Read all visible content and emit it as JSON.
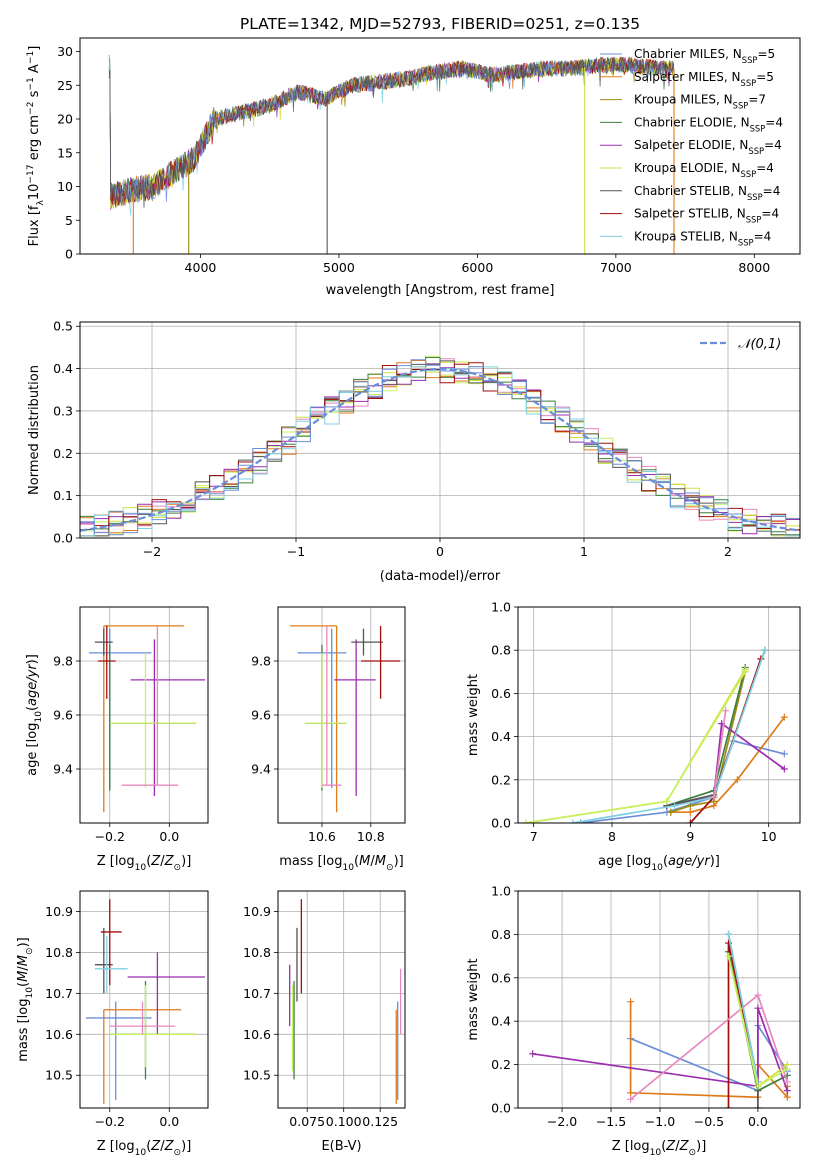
{
  "figure": {
    "title": "PLATE=1342, MJD=52793, FIBERID=0251, z=0.135"
  },
  "colors": {
    "c1": "#6a8fd8",
    "c2": "#e07b1a",
    "c3": "#a08a10",
    "c4": "#3f7f3f",
    "c5": "#9b2db0",
    "c6": "#d4e040",
    "c7": "#555555",
    "c8": "#a00e0e",
    "c9": "#7fd0e0",
    "c10": "#e888c0",
    "c11": "#c8f060",
    "c12": "#60c0b0"
  },
  "chart_data": [
    {
      "id": "spectrum",
      "type": "line",
      "xlabel": "wavelength [Angstrom, rest frame]",
      "ylabel": "Flux [f_λ10^-17 erg cm^-2 s^-1 A^-1]",
      "xlim": [
        3130,
        8330
      ],
      "ylim": [
        0,
        32
      ],
      "xticks": [
        "4000",
        "5000",
        "6000",
        "7000",
        "8000"
      ],
      "xtick_values": [
        4000,
        5000,
        6000,
        7000,
        8000
      ],
      "yticks": [
        "0",
        "5",
        "10",
        "15",
        "20",
        "25",
        "30"
      ],
      "ytick_values": [
        0,
        5,
        10,
        15,
        20,
        25,
        30
      ],
      "grid": false,
      "legend_position": "right",
      "legend": [
        {
          "name": "Chabrier MILES, N",
          "sub": "SSP",
          "suffix": "=5",
          "color": "c1"
        },
        {
          "name": "Salpeter MILES, N",
          "sub": "SSP",
          "suffix": "=5",
          "color": "c2"
        },
        {
          "name": "Kroupa MILES, N",
          "sub": "SSP",
          "suffix": "=7",
          "color": "c3"
        },
        {
          "name": "Chabrier ELODIE, N",
          "sub": "SSP",
          "suffix": "=4",
          "color": "c4"
        },
        {
          "name": "Salpeter ELODIE, N",
          "sub": "SSP",
          "suffix": "=4",
          "color": "c5"
        },
        {
          "name": "Kroupa ELODIE, N",
          "sub": "SSP",
          "suffix": "=4",
          "color": "c6"
        },
        {
          "name": "Chabrier STELIB, N",
          "sub": "SSP",
          "suffix": "=4",
          "color": "c7"
        },
        {
          "name": "Salpeter STELIB, N",
          "sub": "SSP",
          "suffix": "=4",
          "color": "c8"
        },
        {
          "name": "Kroupa STELIB, N",
          "sub": "SSP",
          "suffix": "=4",
          "color": "c9"
        }
      ],
      "continuum": [
        [
          3350,
          8.5
        ],
        [
          3500,
          9.5
        ],
        [
          3650,
          10
        ],
        [
          3800,
          12
        ],
        [
          3950,
          14
        ],
        [
          4100,
          20
        ],
        [
          4300,
          21
        ],
        [
          4500,
          22
        ],
        [
          4700,
          24
        ],
        [
          4900,
          23
        ],
        [
          5100,
          25
        ],
        [
          5300,
          25.5
        ],
        [
          5500,
          26
        ],
        [
          5700,
          27
        ],
        [
          5900,
          27.5
        ],
        [
          6100,
          26.5
        ],
        [
          6300,
          27
        ],
        [
          6500,
          27.5
        ],
        [
          6700,
          27.5
        ],
        [
          6900,
          28
        ],
        [
          7100,
          28
        ],
        [
          7300,
          27.5
        ],
        [
          7400,
          27.5
        ]
      ],
      "drops": [
        {
          "x": 3515,
          "color": "c2"
        },
        {
          "x": 3915,
          "color": "c3"
        },
        {
          "x": 4915,
          "color": "c7"
        },
        {
          "x": 6775,
          "color": "c6"
        },
        {
          "x": 7420,
          "color": "c2"
        }
      ]
    },
    {
      "id": "residuals",
      "type": "histogram",
      "xlabel": "(data-model)/error",
      "ylabel": "Normed distribution",
      "xlim": [
        -2.5,
        2.5
      ],
      "ylim": [
        0,
        0.51
      ],
      "xticks": [
        "−2",
        "−1",
        "0",
        "1",
        "2"
      ],
      "xtick_values": [
        -2,
        -1,
        0,
        1,
        2
      ],
      "yticks": [
        "0.0",
        "0.1",
        "0.2",
        "0.3",
        "0.4",
        "0.5"
      ],
      "ytick_values": [
        0,
        0.1,
        0.2,
        0.3,
        0.4,
        0.5
      ],
      "grid": true,
      "legend_position": "top-right",
      "legend": [
        {
          "name": "𝒩(0,1)",
          "color": "c1",
          "dashed": true
        }
      ],
      "bin_width": 0.1,
      "curve": {
        "type": "normal",
        "mean": 0,
        "sigma": 1
      }
    },
    {
      "id": "age-vs-Z",
      "type": "errorbar",
      "xlabel": "Z [log10(Z/Z⊙)]",
      "ylabel": "age  [log10(age/yr)]",
      "xlim": [
        -0.3,
        0.13
      ],
      "ylim": [
        9.2,
        10.0
      ],
      "xticks": [
        "−0.2",
        "0.0"
      ],
      "xtick_values": [
        -0.2,
        0.0
      ],
      "yticks": [
        "9.4",
        "9.6",
        "9.8"
      ],
      "ytick_values": [
        9.4,
        9.6,
        9.8
      ],
      "grid": true,
      "points": [
        {
          "x": -0.2,
          "y": 9.83,
          "xl": -0.27,
          "xh": -0.06,
          "yl": 9.33,
          "yh": 9.92,
          "color": "c1"
        },
        {
          "x": -0.22,
          "y": 9.93,
          "xl": -0.22,
          "xh": 0.05,
          "yl": 9.24,
          "yh": 9.93,
          "color": "c2"
        },
        {
          "x": -0.2,
          "y": 9.57,
          "xl": -0.2,
          "xh": 0.09,
          "yl": 9.32,
          "yh": 9.86,
          "color": "c4"
        },
        {
          "x": -0.05,
          "y": 9.73,
          "xl": -0.13,
          "xh": 0.12,
          "yl": 9.3,
          "yh": 9.88,
          "color": "c5"
        },
        {
          "x": -0.08,
          "y": 9.57,
          "xl": -0.2,
          "xh": 0.09,
          "yl": 9.33,
          "yh": 9.83,
          "color": "c11"
        },
        {
          "x": -0.22,
          "y": 9.87,
          "xl": -0.25,
          "xh": -0.19,
          "yl": 9.82,
          "yh": 9.92,
          "color": "c7"
        },
        {
          "x": -0.21,
          "y": 9.8,
          "xl": -0.24,
          "xh": -0.18,
          "yl": 9.66,
          "yh": 9.93,
          "color": "c8"
        },
        {
          "x": -0.04,
          "y": 9.34,
          "xl": -0.16,
          "xh": 0.03,
          "yl": 9.34,
          "yh": 9.93,
          "color": "c10"
        }
      ]
    },
    {
      "id": "age-vs-mass",
      "type": "errorbar",
      "xlabel": "mass [log10(M/M⊙)]",
      "ylabel": "",
      "xlim": [
        10.42,
        10.94
      ],
      "ylim": [
        9.2,
        10.0
      ],
      "xticks": [
        "10.6",
        "10.8"
      ],
      "xtick_values": [
        10.6,
        10.8
      ],
      "yticks": [
        "9.4",
        "9.6",
        "9.8"
      ],
      "ytick_values": [
        9.4,
        9.6,
        9.8
      ],
      "grid": true,
      "points": [
        {
          "x": 10.64,
          "y": 9.83,
          "xl": 10.5,
          "xh": 10.7,
          "yl": 9.33,
          "yh": 9.92,
          "color": "c1"
        },
        {
          "x": 10.66,
          "y": 9.93,
          "xl": 10.47,
          "xh": 10.66,
          "yl": 9.24,
          "yh": 9.93,
          "color": "c2"
        },
        {
          "x": 10.6,
          "y": 9.57,
          "xl": 10.53,
          "xh": 10.7,
          "yl": 9.32,
          "yh": 9.86,
          "color": "c4"
        },
        {
          "x": 10.74,
          "y": 9.73,
          "xl": 10.65,
          "xh": 10.82,
          "yl": 9.3,
          "yh": 9.88,
          "color": "c5"
        },
        {
          "x": 10.6,
          "y": 9.57,
          "xl": 10.53,
          "xh": 10.7,
          "yl": 9.33,
          "yh": 9.83,
          "color": "c11"
        },
        {
          "x": 10.77,
          "y": 9.87,
          "xl": 10.72,
          "xh": 10.85,
          "yl": 9.82,
          "yh": 9.92,
          "color": "c7"
        },
        {
          "x": 10.84,
          "y": 9.8,
          "xl": 10.76,
          "xh": 10.92,
          "yl": 9.66,
          "yh": 9.93,
          "color": "c8"
        },
        {
          "x": 10.62,
          "y": 9.34,
          "xl": 10.6,
          "xh": 10.68,
          "yl": 9.34,
          "yh": 9.93,
          "color": "c10"
        }
      ]
    },
    {
      "id": "weight-vs-age",
      "type": "line",
      "xlabel": "age  [log10(age/yr)]",
      "ylabel": "mass weight",
      "xlim": [
        6.8,
        10.4
      ],
      "ylim": [
        0,
        1.0
      ],
      "xticks": [
        "7",
        "8",
        "9",
        "10"
      ],
      "xtick_values": [
        7,
        8,
        9,
        10
      ],
      "yticks": [
        "0.0",
        "0.2",
        "0.4",
        "0.6",
        "0.8",
        "1.0"
      ],
      "ytick_values": [
        0,
        0.2,
        0.4,
        0.6,
        0.8,
        1.0
      ],
      "grid": true,
      "series": [
        {
          "color": "c1",
          "x": [
            7.6,
            8.7,
            9.3,
            9.55,
            10.2
          ],
          "y": [
            0.0,
            0.05,
            0.12,
            0.38,
            0.32
          ]
        },
        {
          "color": "c2",
          "x": [
            8.75,
            9.0,
            9.3,
            9.6,
            10.2
          ],
          "y": [
            0.05,
            0.05,
            0.08,
            0.2,
            0.49
          ]
        },
        {
          "color": "c3",
          "x": [
            8.75,
            9.0,
            9.3,
            9.7
          ],
          "y": [
            0.05,
            0.08,
            0.1,
            0.7
          ]
        },
        {
          "color": "c4",
          "x": [
            8.7,
            9.3,
            9.7
          ],
          "y": [
            0.08,
            0.15,
            0.72
          ]
        },
        {
          "color": "c5",
          "x": [
            8.7,
            9.3,
            9.4,
            10.2
          ],
          "y": [
            0.08,
            0.12,
            0.46,
            0.25
          ]
        },
        {
          "color": "c6",
          "x": [
            6.9,
            8.7,
            9.7
          ],
          "y": [
            0.0,
            0.1,
            0.71
          ]
        },
        {
          "color": "c7",
          "x": [
            8.7,
            9.3,
            9.95
          ],
          "y": [
            0.08,
            0.13,
            0.8
          ]
        },
        {
          "color": "c8",
          "x": [
            9.0,
            9.3,
            9.9
          ],
          "y": [
            0.0,
            0.12,
            0.76
          ]
        },
        {
          "color": "c9",
          "x": [
            7.5,
            8.8,
            9.3,
            9.95
          ],
          "y": [
            0.0,
            0.08,
            0.12,
            0.8
          ]
        },
        {
          "color": "c10",
          "x": [
            9.3,
            9.45
          ],
          "y": [
            0.12,
            0.52
          ]
        },
        {
          "color": "c11",
          "x": [
            6.9,
            8.7,
            9.7
          ],
          "y": [
            0.0,
            0.1,
            0.7
          ]
        }
      ]
    },
    {
      "id": "mass-vs-Z",
      "type": "errorbar",
      "xlabel": "Z [log10(Z/Z⊙)]",
      "ylabel": "mass [log10(M/M⊙)]",
      "xlim": [
        -0.3,
        0.13
      ],
      "ylim": [
        10.42,
        10.95
      ],
      "xticks": [
        "−0.2",
        "0.0"
      ],
      "xtick_values": [
        -0.2,
        0.0
      ],
      "yticks": [
        "10.5",
        "10.6",
        "10.7",
        "10.8",
        "10.9"
      ],
      "ytick_values": [
        10.5,
        10.6,
        10.7,
        10.8,
        10.9
      ],
      "grid": true,
      "points": [
        {
          "x": -0.18,
          "y": 10.64,
          "xl": -0.28,
          "xh": -0.06,
          "yl": 10.44,
          "yh": 10.68,
          "color": "c1"
        },
        {
          "x": -0.22,
          "y": 10.66,
          "xl": -0.22,
          "xh": 0.04,
          "yl": 10.43,
          "yh": 10.66,
          "color": "c2"
        },
        {
          "x": -0.08,
          "y": 10.6,
          "xl": -0.2,
          "xh": 0.09,
          "yl": 10.49,
          "yh": 10.73,
          "color": "c4"
        },
        {
          "x": -0.04,
          "y": 10.74,
          "xl": -0.14,
          "xh": 0.12,
          "yl": 10.6,
          "yh": 10.8,
          "color": "c5"
        },
        {
          "x": -0.08,
          "y": 10.6,
          "xl": -0.2,
          "xh": 0.09,
          "yl": 10.52,
          "yh": 10.72,
          "color": "c11"
        },
        {
          "x": -0.22,
          "y": 10.77,
          "xl": -0.25,
          "xh": -0.19,
          "yl": 10.7,
          "yh": 10.86,
          "color": "c7"
        },
        {
          "x": -0.2,
          "y": 10.85,
          "xl": -0.23,
          "xh": -0.16,
          "yl": 10.72,
          "yh": 10.93,
          "color": "c8"
        },
        {
          "x": -0.09,
          "y": 10.62,
          "xl": -0.2,
          "xh": 0.02,
          "yl": 10.6,
          "yh": 10.68,
          "color": "c10"
        },
        {
          "x": -0.21,
          "y": 10.76,
          "xl": -0.25,
          "xh": -0.14,
          "yl": 10.7,
          "yh": 10.84,
          "color": "c9"
        }
      ]
    },
    {
      "id": "mass-vs-EBV",
      "type": "errorbar",
      "xlabel": "E(B-V)",
      "ylabel": "",
      "xlim": [
        0.055,
        0.142
      ],
      "ylim": [
        10.42,
        10.95
      ],
      "xticks": [
        "0.075",
        "0.100",
        "0.125"
      ],
      "xtick_values": [
        0.075,
        0.1,
        0.125
      ],
      "yticks": [
        "10.5",
        "10.6",
        "10.7",
        "10.8",
        "10.9"
      ],
      "ytick_values": [
        10.5,
        10.6,
        10.7,
        10.8,
        10.9
      ],
      "grid": true,
      "points": [
        {
          "x": 0.137,
          "y": 10.64,
          "yl": 10.44,
          "yh": 10.68,
          "color": "c1"
        },
        {
          "x": 0.136,
          "y": 10.5,
          "yl": 10.43,
          "yh": 10.66,
          "color": "c2"
        },
        {
          "x": 0.066,
          "y": 10.6,
          "yl": 10.49,
          "yh": 10.73,
          "color": "c4"
        },
        {
          "x": 0.063,
          "y": 10.74,
          "yl": 10.62,
          "yh": 10.77,
          "color": "c5"
        },
        {
          "x": 0.065,
          "y": 10.6,
          "yl": 10.51,
          "yh": 10.72,
          "color": "c11"
        },
        {
          "x": 0.068,
          "y": 10.77,
          "yl": 10.68,
          "yh": 10.86,
          "color": "c7"
        },
        {
          "x": 0.071,
          "y": 10.85,
          "yl": 10.7,
          "yh": 10.93,
          "color": "c8"
        },
        {
          "x": 0.139,
          "y": 10.7,
          "yl": 10.6,
          "yh": 10.76,
          "color": "c10"
        }
      ]
    },
    {
      "id": "weight-vs-Z",
      "type": "line",
      "xlabel": "Z [log10(Z/Z⊙)]",
      "ylabel": "mass weight",
      "xlim": [
        -2.45,
        0.43
      ],
      "ylim": [
        0,
        1.0
      ],
      "xticks": [
        "−2.0",
        "−1.5",
        "−1.0",
        "−0.5",
        "0.0"
      ],
      "xtick_values": [
        -2.0,
        -1.5,
        -1.0,
        -0.5,
        0.0
      ],
      "yticks": [
        "0.0",
        "0.2",
        "0.4",
        "0.6",
        "0.8",
        "1.0"
      ],
      "ytick_values": [
        0,
        0.2,
        0.4,
        0.6,
        0.8,
        1.0
      ],
      "grid": true,
      "series": [
        {
          "color": "c1",
          "x": [
            -1.3,
            0.0,
            0.0,
            0.3
          ],
          "y": [
            0.32,
            0.08,
            0.38,
            0.17
          ]
        },
        {
          "color": "c2",
          "x": [
            -1.3,
            -1.3,
            0.0,
            0.0,
            0.3,
            0.3
          ],
          "y": [
            0.49,
            0.07,
            0.05,
            0.2,
            0.05,
            0.1
          ]
        },
        {
          "color": "c4",
          "x": [
            -0.3,
            0.0,
            0.3
          ],
          "y": [
            0.72,
            0.08,
            0.15
          ]
        },
        {
          "color": "c5",
          "x": [
            -2.3,
            0.0,
            0.0,
            0.3
          ],
          "y": [
            0.25,
            0.1,
            0.46,
            0.08
          ]
        },
        {
          "color": "c6",
          "x": [
            -0.3,
            0.0,
            0.3
          ],
          "y": [
            0.7,
            0.1,
            0.2
          ]
        },
        {
          "color": "c7",
          "x": [
            -0.3,
            0.0,
            0.0
          ],
          "y": [
            0.8,
            0.12,
            0.0
          ]
        },
        {
          "color": "c8",
          "x": [
            -0.3,
            -0.3,
            0.0
          ],
          "y": [
            0.0,
            0.76,
            0.12
          ]
        },
        {
          "color": "c9",
          "x": [
            -0.3,
            0.0
          ],
          "y": [
            0.8,
            0.12
          ]
        },
        {
          "color": "c10",
          "x": [
            -1.3,
            0.0,
            0.3
          ],
          "y": [
            0.04,
            0.52,
            0.12
          ]
        },
        {
          "color": "c11",
          "x": [
            -0.3,
            0.0,
            0.3
          ],
          "y": [
            0.7,
            0.1,
            0.18
          ]
        }
      ]
    }
  ]
}
